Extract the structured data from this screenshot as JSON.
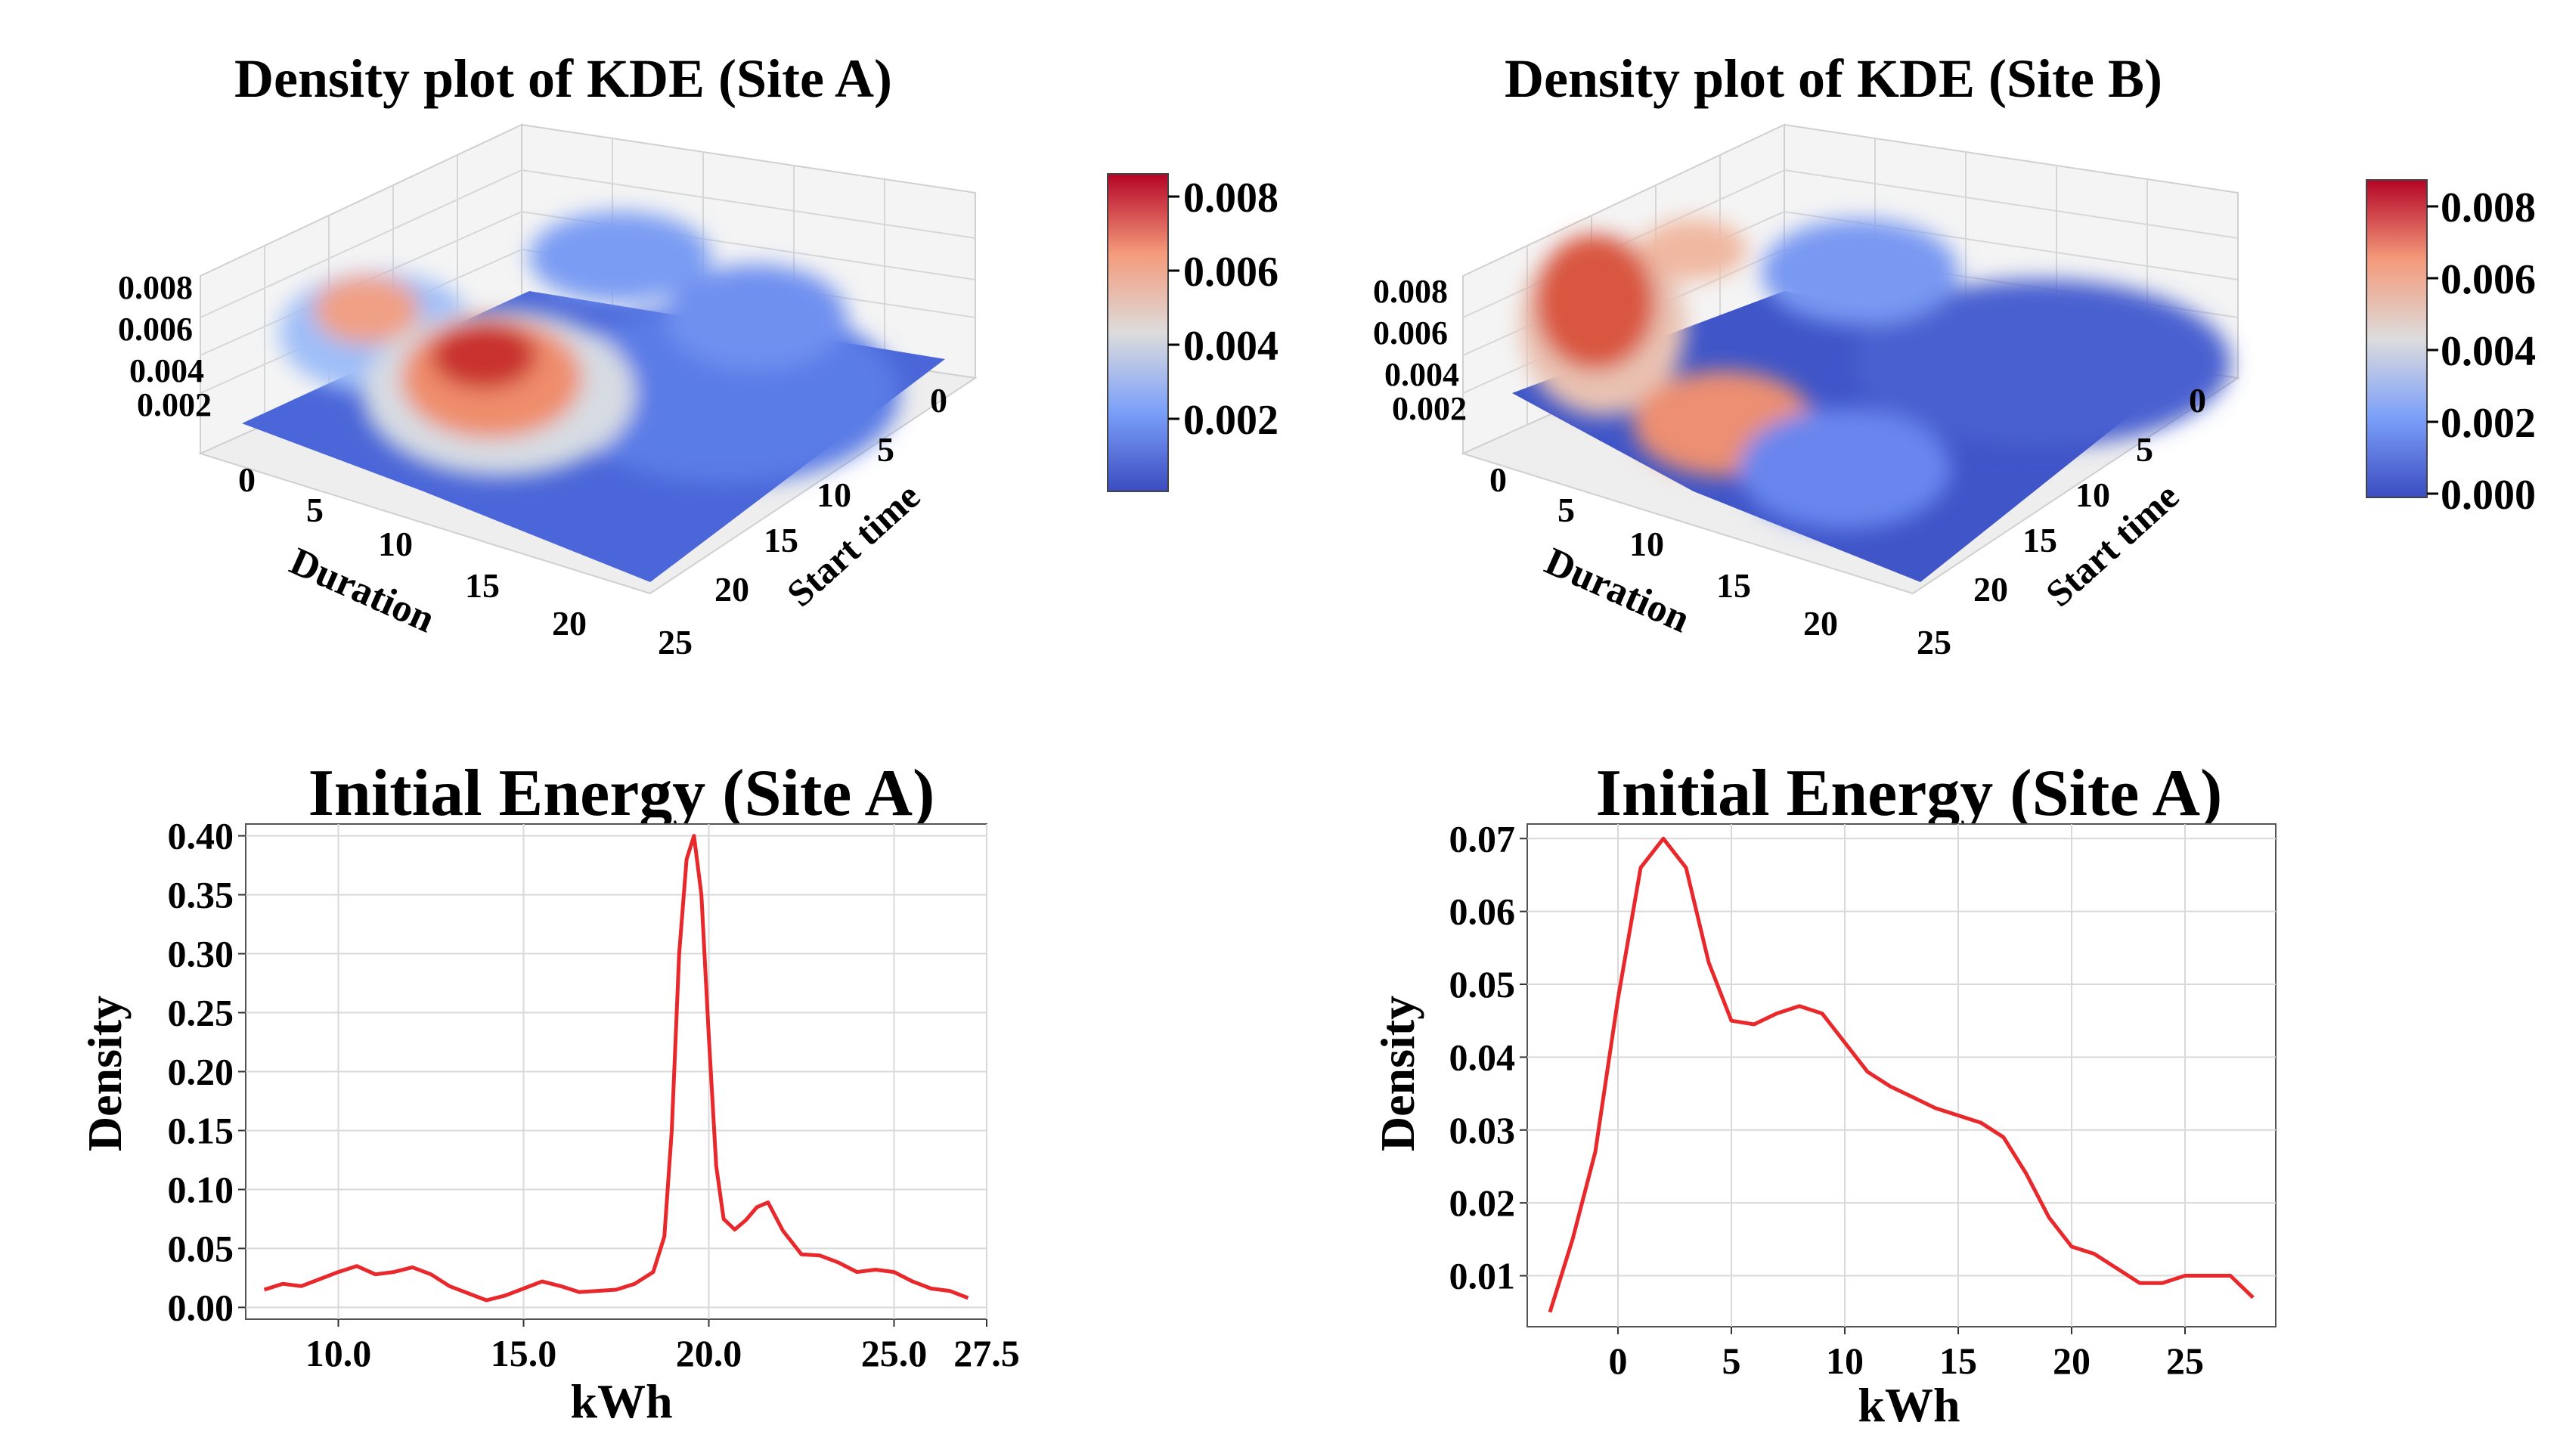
{
  "chart_data": [
    {
      "type": "surface",
      "title": "Density plot of KDE (Site A)",
      "xlabel": "Duration",
      "ylabel": "Start time",
      "x_ticks": [
        "0",
        "5",
        "10",
        "15",
        "20"
      ],
      "y_ticks": [
        "0",
        "5",
        "10",
        "15",
        "20",
        "25"
      ],
      "z_ticks": [
        "0.002",
        "0.004",
        "0.006",
        "0.008"
      ],
      "colorbar_ticks": [
        "0.002",
        "0.004",
        "0.006",
        "0.008"
      ],
      "colormap": "coolwarm",
      "peaks": [
        {
          "duration": 10,
          "start": 19,
          "density": 0.0078
        },
        {
          "duration": 3,
          "start": 22,
          "density": 0.0065
        },
        {
          "duration": 8,
          "start": 11,
          "density": 0.0042
        },
        {
          "duration": 14,
          "start": 5,
          "density": 0.0038
        }
      ]
    },
    {
      "type": "surface",
      "title": "Density plot of KDE (Site B)",
      "xlabel": "Duration",
      "ylabel": "Start time",
      "x_ticks": [
        "0",
        "5",
        "10",
        "15",
        "20"
      ],
      "y_ticks": [
        "0",
        "5",
        "10",
        "15",
        "20",
        "25"
      ],
      "z_ticks": [
        "0.002",
        "0.004",
        "0.006",
        "0.008"
      ],
      "colorbar_ticks": [
        "0.000",
        "0.002",
        "0.004",
        "0.006",
        "0.008"
      ],
      "colormap": "coolwarm",
      "peaks": [
        {
          "duration": 2,
          "start": 22,
          "density": 0.0082
        },
        {
          "duration": 8,
          "start": 17,
          "density": 0.0058
        },
        {
          "duration": 6,
          "start": 9,
          "density": 0.0045
        },
        {
          "duration": 12,
          "start": 6,
          "density": 0.003
        }
      ]
    },
    {
      "type": "line",
      "title": "Initial Energy (Site A)",
      "xlabel": "kWh",
      "ylabel": "Density",
      "xlim": [
        7.5,
        27.5
      ],
      "ylim": [
        -0.01,
        0.41
      ],
      "x_ticks": [
        "10.0",
        "15.0",
        "20.0",
        "25.0",
        "27.5"
      ],
      "y_ticks": [
        "0.00",
        "0.05",
        "0.10",
        "0.15",
        "0.20",
        "0.25",
        "0.30",
        "0.35",
        "0.40"
      ],
      "color": "#e8282b",
      "x": [
        8.0,
        8.5,
        9.0,
        9.5,
        10.0,
        10.5,
        11.0,
        11.5,
        12.0,
        12.5,
        13.0,
        13.5,
        14.0,
        14.5,
        15.0,
        15.5,
        16.0,
        16.5,
        17.0,
        17.5,
        18.0,
        18.5,
        18.8,
        19.0,
        19.2,
        19.4,
        19.6,
        19.8,
        20.0,
        20.2,
        20.4,
        20.7,
        21.0,
        21.3,
        21.6,
        22.0,
        22.5,
        23.0,
        23.5,
        24.0,
        24.5,
        25.0,
        25.5,
        26.0,
        26.5,
        27.0
      ],
      "y": [
        0.015,
        0.02,
        0.018,
        0.024,
        0.03,
        0.035,
        0.028,
        0.03,
        0.034,
        0.028,
        0.018,
        0.012,
        0.006,
        0.01,
        0.016,
        0.022,
        0.018,
        0.013,
        0.014,
        0.015,
        0.02,
        0.03,
        0.06,
        0.15,
        0.3,
        0.38,
        0.4,
        0.35,
        0.23,
        0.12,
        0.075,
        0.066,
        0.074,
        0.085,
        0.089,
        0.065,
        0.045,
        0.044,
        0.038,
        0.03,
        0.032,
        0.03,
        0.022,
        0.016,
        0.014,
        0.008
      ]
    },
    {
      "type": "line",
      "title": "Initial Energy (Site A)",
      "xlabel": "kWh",
      "ylabel": "Density",
      "xlim": [
        -4,
        29
      ],
      "ylim": [
        0.003,
        0.072
      ],
      "x_ticks": [
        "0",
        "5",
        "10",
        "15",
        "20",
        "25"
      ],
      "y_ticks": [
        "0.01",
        "0.02",
        "0.03",
        "0.04",
        "0.05",
        "0.06",
        "0.07"
      ],
      "color": "#e8282b",
      "x": [
        -3,
        -2,
        -1,
        0,
        1,
        2,
        3,
        4,
        5,
        6,
        7,
        8,
        9,
        10,
        11,
        12,
        13,
        14,
        15,
        16,
        17,
        18,
        19,
        20,
        21,
        22,
        23,
        24,
        25,
        26,
        27,
        28
      ],
      "y": [
        0.005,
        0.015,
        0.027,
        0.048,
        0.066,
        0.07,
        0.066,
        0.053,
        0.045,
        0.0445,
        0.046,
        0.047,
        0.046,
        0.042,
        0.038,
        0.036,
        0.0345,
        0.033,
        0.032,
        0.031,
        0.029,
        0.024,
        0.018,
        0.014,
        0.013,
        0.011,
        0.009,
        0.009,
        0.01,
        0.01,
        0.01,
        0.007
      ]
    }
  ]
}
